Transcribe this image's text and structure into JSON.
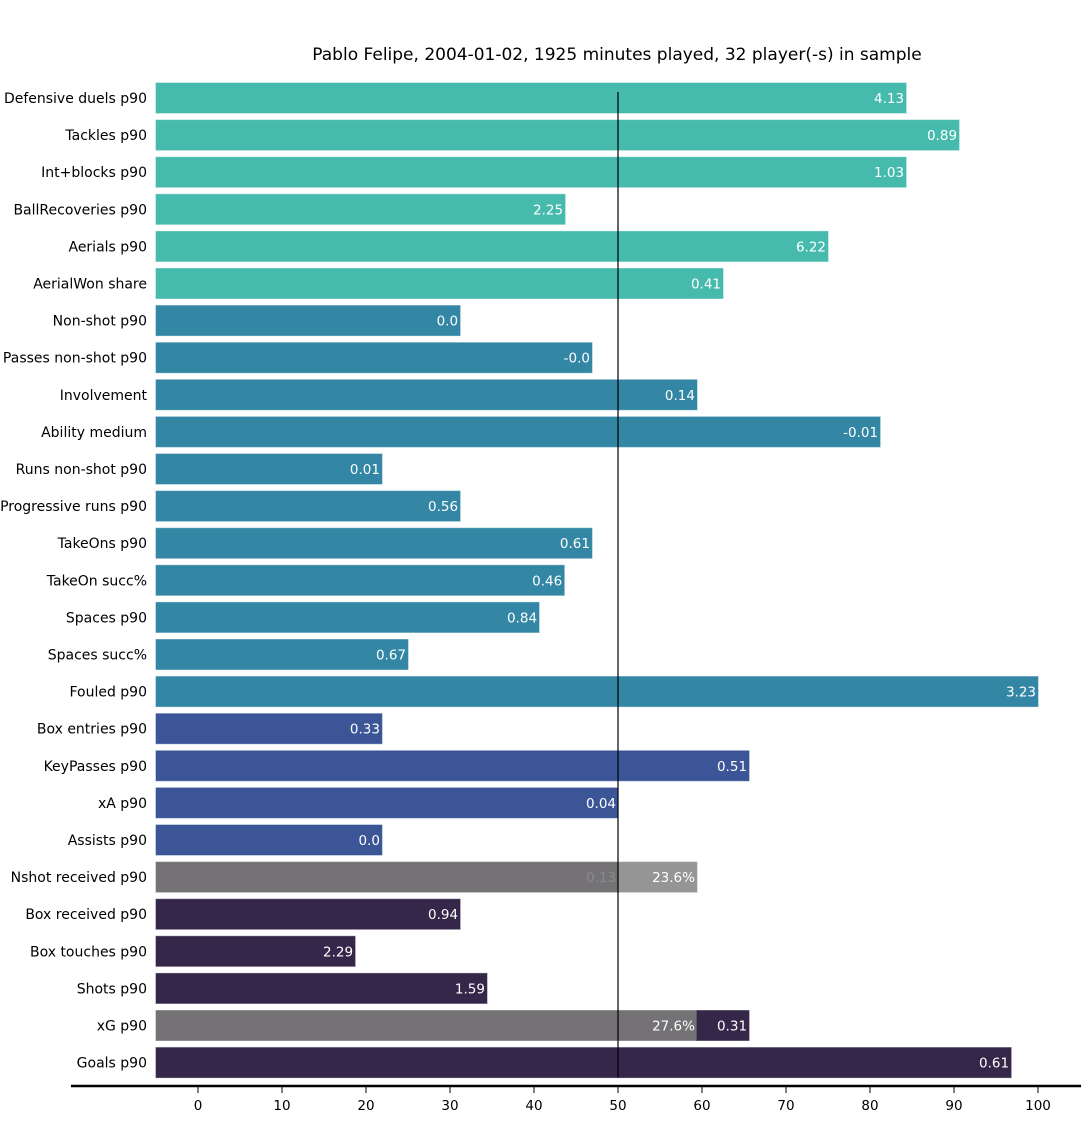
{
  "chart_data": {
    "type": "bar",
    "orientation": "horizontal",
    "title": "Pablo Felipe, 2004-01-02, 1925 minutes played, 32 player(-s) in sample",
    "xlabel": "",
    "ylabel": "",
    "xlim": [
      -5,
      105
    ],
    "bar_origin": -5,
    "x_ticks": [
      0,
      10,
      20,
      30,
      40,
      50,
      60,
      70,
      80,
      90,
      100
    ],
    "reference_line": 50,
    "grid": false,
    "colors": {
      "defending": "#46bbad",
      "progression": "#3387a5",
      "creation": "#3b5596",
      "finishing": "#35274a",
      "gray": "#747275",
      "light_gray": "#959595",
      "faint_label": "#8a8a8e"
    },
    "categories": [
      "Defensive duels p90",
      "Tackles p90",
      "Int+blocks p90",
      "BallRecoveries p90",
      "Aerials p90",
      "AerialWon share",
      "Non-shot p90",
      "Passes non-shot p90",
      "Involvement",
      "Ability medium",
      "Runs non-shot p90",
      "Progressive runs p90",
      "TakeOns p90",
      "TakeOn succ%",
      "Spaces p90",
      "Spaces succ%",
      "Fouled p90",
      "Box entries p90",
      "KeyPasses p90",
      "xA p90",
      "Assists p90",
      "Nshot received p90",
      "Box received p90",
      "Box touches p90",
      "Shots p90",
      "xG p90",
      "Goals p90"
    ],
    "bars": [
      {
        "category": "Defensive duels p90",
        "segments": [
          {
            "start": -5,
            "end": 84.3,
            "color": "defending",
            "label": "4.13"
          }
        ]
      },
      {
        "category": "Tackles p90",
        "segments": [
          {
            "start": -5,
            "end": 90.6,
            "color": "defending",
            "label": "0.89"
          }
        ]
      },
      {
        "category": "Int+blocks p90",
        "segments": [
          {
            "start": -5,
            "end": 84.3,
            "color": "defending",
            "label": "1.03"
          }
        ]
      },
      {
        "category": "BallRecoveries p90",
        "segments": [
          {
            "start": -5,
            "end": 43.7,
            "color": "defending",
            "label": "2.25"
          }
        ]
      },
      {
        "category": "Aerials p90",
        "segments": [
          {
            "start": -5,
            "end": 75.0,
            "color": "defending",
            "label": "6.22"
          }
        ]
      },
      {
        "category": "AerialWon share",
        "segments": [
          {
            "start": -5,
            "end": 62.5,
            "color": "defending",
            "label": "0.41"
          }
        ]
      },
      {
        "category": "Non-shot p90",
        "segments": [
          {
            "start": -5,
            "end": 31.2,
            "color": "progression",
            "label": "0.0"
          }
        ]
      },
      {
        "category": "Passes non-shot p90",
        "segments": [
          {
            "start": -5,
            "end": 46.9,
            "color": "progression",
            "label": "-0.0"
          }
        ]
      },
      {
        "category": "Involvement",
        "segments": [
          {
            "start": -5,
            "end": 59.4,
            "color": "progression",
            "label": "0.14"
          }
        ]
      },
      {
        "category": "Ability medium",
        "segments": [
          {
            "start": -5,
            "end": 81.2,
            "color": "progression",
            "label": "-0.01"
          }
        ]
      },
      {
        "category": "Runs non-shot p90",
        "segments": [
          {
            "start": -5,
            "end": 21.9,
            "color": "progression",
            "label": "0.01"
          }
        ]
      },
      {
        "category": "Progressive runs p90",
        "segments": [
          {
            "start": -5,
            "end": 31.2,
            "color": "progression",
            "label": "0.56"
          }
        ]
      },
      {
        "category": "TakeOns p90",
        "segments": [
          {
            "start": -5,
            "end": 46.9,
            "color": "progression",
            "label": "0.61"
          }
        ]
      },
      {
        "category": "TakeOn succ%",
        "segments": [
          {
            "start": -5,
            "end": 43.6,
            "color": "progression",
            "label": "0.46"
          }
        ]
      },
      {
        "category": "Spaces p90",
        "segments": [
          {
            "start": -5,
            "end": 40.6,
            "color": "progression",
            "label": "0.84"
          }
        ]
      },
      {
        "category": "Spaces succ%",
        "segments": [
          {
            "start": -5,
            "end": 25.0,
            "color": "progression",
            "label": "0.67"
          }
        ]
      },
      {
        "category": "Fouled p90",
        "segments": [
          {
            "start": -5,
            "end": 100.0,
            "color": "progression",
            "label": "3.23"
          }
        ]
      },
      {
        "category": "Box entries p90",
        "segments": [
          {
            "start": -5,
            "end": 21.9,
            "color": "creation",
            "label": "0.33"
          }
        ]
      },
      {
        "category": "KeyPasses p90",
        "segments": [
          {
            "start": -5,
            "end": 65.6,
            "color": "creation",
            "label": "0.51"
          }
        ]
      },
      {
        "category": "xA p90",
        "segments": [
          {
            "start": -5,
            "end": 50.0,
            "color": "creation",
            "label": "0.04"
          }
        ]
      },
      {
        "category": "Assists p90",
        "segments": [
          {
            "start": -5,
            "end": 21.9,
            "color": "creation",
            "label": "0.0"
          }
        ]
      },
      {
        "category": "Nshot received p90",
        "segments": [
          {
            "start": -5,
            "end": 50.0,
            "color": "gray",
            "label": "0.13",
            "faint": true
          },
          {
            "start": 50.0,
            "end": 59.4,
            "color": "light_gray",
            "label": "23.6%"
          }
        ]
      },
      {
        "category": "Box received p90",
        "segments": [
          {
            "start": -5,
            "end": 31.2,
            "color": "finishing",
            "label": "0.94"
          }
        ]
      },
      {
        "category": "Box touches p90",
        "segments": [
          {
            "start": -5,
            "end": 18.7,
            "color": "finishing",
            "label": "2.29"
          }
        ]
      },
      {
        "category": "Shots p90",
        "segments": [
          {
            "start": -5,
            "end": 34.4,
            "color": "finishing",
            "label": "1.59"
          }
        ]
      },
      {
        "category": "xG p90",
        "segments": [
          {
            "start": -5,
            "end": 59.4,
            "color": "gray",
            "label": "27.6%"
          },
          {
            "start": 59.4,
            "end": 65.6,
            "color": "finishing",
            "label": "0.31"
          }
        ]
      },
      {
        "category": "Goals p90",
        "segments": [
          {
            "start": -5,
            "end": 96.8,
            "color": "finishing",
            "label": "0.61"
          }
        ]
      }
    ]
  }
}
